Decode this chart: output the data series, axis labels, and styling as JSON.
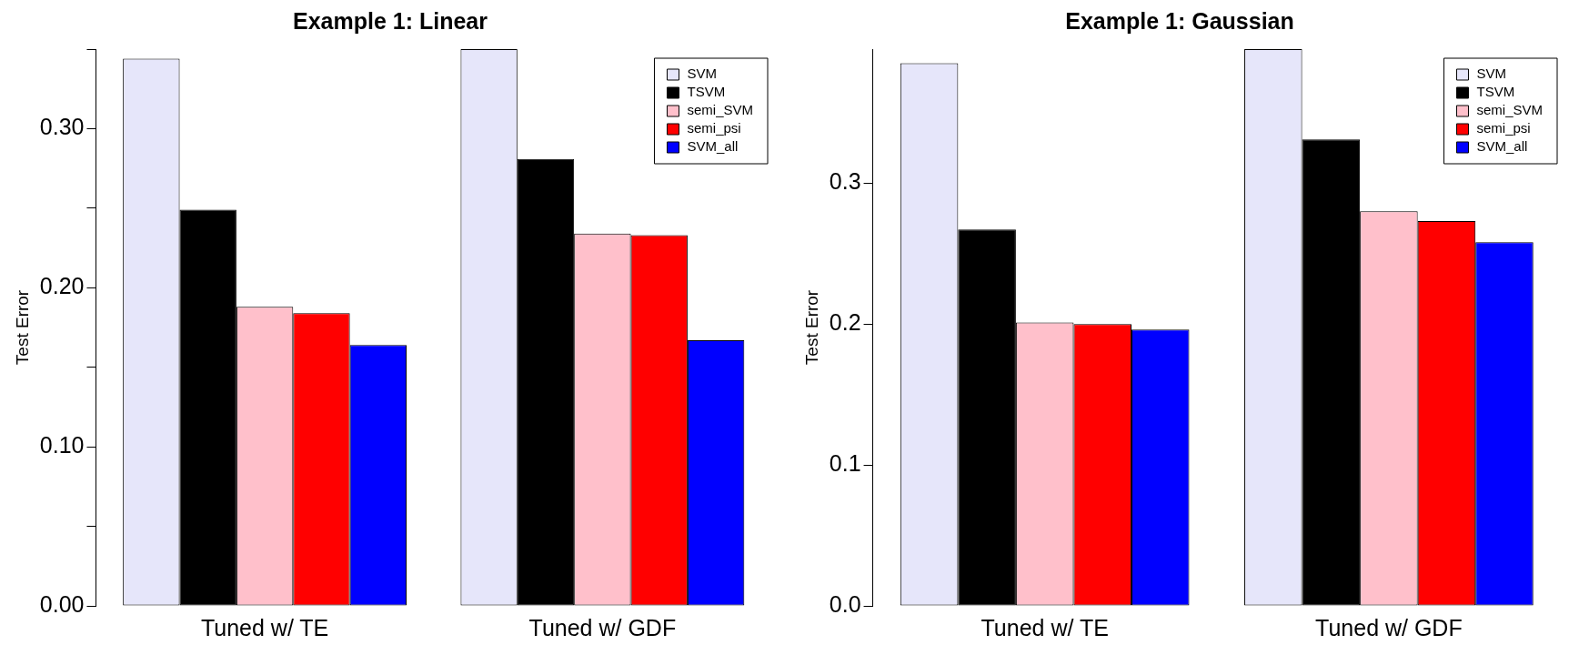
{
  "chart_data": [
    {
      "type": "bar",
      "title": "Example 1: Linear",
      "ylabel": "Test Error",
      "categories": [
        "Tuned w/ TE",
        "Tuned w/ GDF"
      ],
      "series": [
        {
          "name": "SVM",
          "color": "#e6e6fa",
          "values": [
            0.344,
            0.35
          ]
        },
        {
          "name": "TSVM",
          "color": "#000000",
          "values": [
            0.249,
            0.281
          ]
        },
        {
          "name": "semi_SVM",
          "color": "#ffc0cb",
          "values": [
            0.188,
            0.234
          ]
        },
        {
          "name": "semi_psi",
          "color": "#ff0000",
          "values": [
            0.184,
            0.233
          ]
        },
        {
          "name": "SVM_all",
          "color": "#0000ff",
          "values": [
            0.164,
            0.167
          ]
        }
      ],
      "ylim": [
        0,
        0.35
      ],
      "yticks": [
        {
          "value": 0,
          "label": "0.00"
        },
        {
          "value": 0.05,
          "label": null
        },
        {
          "value": 0.1,
          "label": "0.10"
        },
        {
          "value": 0.15,
          "label": null
        },
        {
          "value": 0.2,
          "label": "0.20"
        },
        {
          "value": 0.25,
          "label": null
        },
        {
          "value": 0.3,
          "label": "0.30"
        },
        {
          "value": 0.35,
          "label": null
        }
      ],
      "grid": false,
      "legend": "top right"
    },
    {
      "type": "bar",
      "title": "Example 1: Gaussian",
      "ylabel": "Test Error",
      "categories": [
        "Tuned w/ TE",
        "Tuned w/ GDF"
      ],
      "series": [
        {
          "name": "SVM",
          "color": "#e6e6fa",
          "values": [
            0.385,
            0.395
          ]
        },
        {
          "name": "TSVM",
          "color": "#000000",
          "values": [
            0.267,
            0.331
          ]
        },
        {
          "name": "semi_SVM",
          "color": "#ffc0cb",
          "values": [
            0.201,
            0.28
          ]
        },
        {
          "name": "semi_psi",
          "color": "#ff0000",
          "values": [
            0.2,
            0.273
          ]
        },
        {
          "name": "SVM_all",
          "color": "#0000ff",
          "values": [
            0.196,
            0.258
          ]
        }
      ],
      "ylim": [
        0,
        0.395
      ],
      "yticks": [
        {
          "value": 0,
          "label": "0.0"
        },
        {
          "value": 0.1,
          "label": "0.1"
        },
        {
          "value": 0.2,
          "label": "0.2"
        },
        {
          "value": 0.3,
          "label": "0.3"
        }
      ],
      "grid": false,
      "legend": "top right"
    }
  ]
}
